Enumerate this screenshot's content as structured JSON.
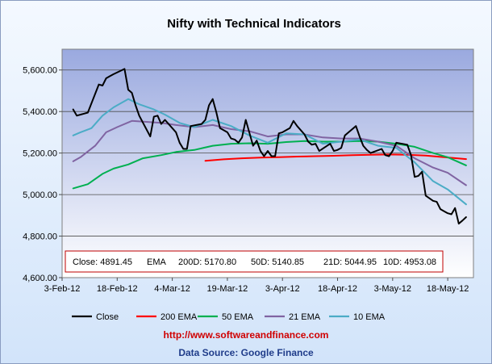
{
  "chart_data": {
    "type": "line",
    "title": "Nifty with Technical Indicators",
    "xlabel": "",
    "ylabel": "",
    "ylim": [
      4600,
      5700
    ],
    "yticks": [
      "4,600.00",
      "4,800.00",
      "5,000.00",
      "5,200.00",
      "5,400.00",
      "5,600.00"
    ],
    "ytick_values": [
      4600,
      4800,
      5000,
      5200,
      5400,
      5600
    ],
    "xlim": [
      "2012-02-03",
      "2012-05-25"
    ],
    "xticks": [
      "3-Feb-12",
      "18-Feb-12",
      "4-Mar-12",
      "19-Mar-12",
      "3-Apr-12",
      "18-Apr-12",
      "3-May-12",
      "18-May-12"
    ],
    "xtick_dates": [
      "2012-02-03",
      "2012-02-18",
      "2012-03-04",
      "2012-03-19",
      "2012-04-03",
      "2012-04-18",
      "2012-05-03",
      "2012-05-18"
    ],
    "grid": "horizontal",
    "legend_position": "bottom",
    "series": [
      {
        "name": "Close",
        "color": "#000000",
        "points": [
          [
            "2012-02-06",
            5410
          ],
          [
            "2012-02-07",
            5380
          ],
          [
            "2012-02-08",
            5385
          ],
          [
            "2012-02-09",
            5390
          ],
          [
            "2012-02-10",
            5395
          ],
          [
            "2012-02-13",
            5530
          ],
          [
            "2012-02-14",
            5525
          ],
          [
            "2012-02-15",
            5560
          ],
          [
            "2012-02-16",
            5570
          ],
          [
            "2012-02-17",
            5580
          ],
          [
            "2012-02-20",
            5605
          ],
          [
            "2012-02-21",
            5505
          ],
          [
            "2012-02-22",
            5490
          ],
          [
            "2012-02-23",
            5430
          ],
          [
            "2012-02-24",
            5380
          ],
          [
            "2012-02-27",
            5280
          ],
          [
            "2012-02-28",
            5375
          ],
          [
            "2012-02-29",
            5380
          ],
          [
            "2012-03-01",
            5340
          ],
          [
            "2012-03-02",
            5360
          ],
          [
            "2012-03-05",
            5300
          ],
          [
            "2012-03-06",
            5250
          ],
          [
            "2012-03-07",
            5220
          ],
          [
            "2012-03-08",
            5220
          ],
          [
            "2012-03-09",
            5330
          ],
          [
            "2012-03-12",
            5340
          ],
          [
            "2012-03-13",
            5360
          ],
          [
            "2012-03-14",
            5430
          ],
          [
            "2012-03-15",
            5460
          ],
          [
            "2012-03-16",
            5395
          ],
          [
            "2012-03-17",
            5320
          ],
          [
            "2012-03-19",
            5300
          ],
          [
            "2012-03-20",
            5270
          ],
          [
            "2012-03-21",
            5265
          ],
          [
            "2012-03-22",
            5250
          ],
          [
            "2012-03-23",
            5275
          ],
          [
            "2012-03-24",
            5360
          ],
          [
            "2012-03-26",
            5235
          ],
          [
            "2012-03-27",
            5260
          ],
          [
            "2012-03-28",
            5210
          ],
          [
            "2012-03-29",
            5185
          ],
          [
            "2012-03-30",
            5210
          ],
          [
            "2012-03-31",
            5185
          ],
          [
            "2012-04-01",
            5185
          ],
          [
            "2012-04-02",
            5295
          ],
          [
            "2012-04-03",
            5300
          ],
          [
            "2012-04-04",
            5310
          ],
          [
            "2012-04-05",
            5320
          ],
          [
            "2012-04-06",
            5355
          ],
          [
            "2012-04-07",
            5330
          ],
          [
            "2012-04-09",
            5290
          ],
          [
            "2012-04-10",
            5255
          ],
          [
            "2012-04-11",
            5240
          ],
          [
            "2012-04-12",
            5245
          ],
          [
            "2012-04-13",
            5210
          ],
          [
            "2012-04-16",
            5245
          ],
          [
            "2012-04-17",
            5210
          ],
          [
            "2012-04-18",
            5215
          ],
          [
            "2012-04-19",
            5225
          ],
          [
            "2012-04-20",
            5285
          ],
          [
            "2012-04-21",
            5300
          ],
          [
            "2012-04-23",
            5330
          ],
          [
            "2012-04-24",
            5280
          ],
          [
            "2012-04-25",
            5235
          ],
          [
            "2012-04-26",
            5215
          ],
          [
            "2012-04-27",
            5200
          ],
          [
            "2012-04-30",
            5220
          ],
          [
            "2012-05-01",
            5190
          ],
          [
            "2012-05-02",
            5185
          ],
          [
            "2012-05-03",
            5210
          ],
          [
            "2012-05-04",
            5250
          ],
          [
            "2012-05-07",
            5240
          ],
          [
            "2012-05-08",
            5190
          ],
          [
            "2012-05-09",
            5085
          ],
          [
            "2012-05-10",
            5090
          ],
          [
            "2012-05-11",
            5110
          ],
          [
            "2012-05-12",
            4995
          ],
          [
            "2012-05-14",
            4970
          ],
          [
            "2012-05-15",
            4965
          ],
          [
            "2012-05-16",
            4930
          ],
          [
            "2012-05-17",
            4920
          ],
          [
            "2012-05-18",
            4910
          ],
          [
            "2012-05-19",
            4905
          ],
          [
            "2012-05-20",
            4935
          ],
          [
            "2012-05-21",
            4860
          ],
          [
            "2012-05-22",
            4875
          ],
          [
            "2012-05-23",
            4891.45
          ]
        ]
      },
      {
        "name": "200 EMA",
        "color": "#ff0000",
        "points": [
          [
            "2012-03-13",
            5163
          ],
          [
            "2012-03-18",
            5170
          ],
          [
            "2012-03-23",
            5175
          ],
          [
            "2012-03-28",
            5178
          ],
          [
            "2012-04-02",
            5180
          ],
          [
            "2012-04-07",
            5183
          ],
          [
            "2012-04-12",
            5185
          ],
          [
            "2012-04-17",
            5187
          ],
          [
            "2012-04-22",
            5190
          ],
          [
            "2012-04-27",
            5192
          ],
          [
            "2012-05-02",
            5193
          ],
          [
            "2012-05-07",
            5192
          ],
          [
            "2012-05-12",
            5188
          ],
          [
            "2012-05-17",
            5180
          ],
          [
            "2012-05-23",
            5170.8
          ]
        ]
      },
      {
        "name": "50 EMA",
        "color": "#00b050",
        "points": [
          [
            "2012-02-06",
            5030
          ],
          [
            "2012-02-10",
            5050
          ],
          [
            "2012-02-14",
            5100
          ],
          [
            "2012-02-17",
            5125
          ],
          [
            "2012-02-21",
            5145
          ],
          [
            "2012-02-25",
            5175
          ],
          [
            "2012-03-01",
            5190
          ],
          [
            "2012-03-05",
            5205
          ],
          [
            "2012-03-10",
            5215
          ],
          [
            "2012-03-15",
            5235
          ],
          [
            "2012-03-20",
            5245
          ],
          [
            "2012-03-25",
            5247
          ],
          [
            "2012-03-30",
            5245
          ],
          [
            "2012-04-04",
            5253
          ],
          [
            "2012-04-09",
            5258
          ],
          [
            "2012-04-14",
            5255
          ],
          [
            "2012-04-19",
            5255
          ],
          [
            "2012-04-24",
            5258
          ],
          [
            "2012-04-29",
            5255
          ],
          [
            "2012-05-04",
            5245
          ],
          [
            "2012-05-09",
            5230
          ],
          [
            "2012-05-14",
            5200
          ],
          [
            "2012-05-18",
            5180
          ],
          [
            "2012-05-23",
            5140.85
          ]
        ]
      },
      {
        "name": "21 EMA",
        "color": "#8064a2",
        "points": [
          [
            "2012-02-06",
            5160
          ],
          [
            "2012-02-08",
            5180
          ],
          [
            "2012-02-12",
            5235
          ],
          [
            "2012-02-15",
            5300
          ],
          [
            "2012-02-18",
            5325
          ],
          [
            "2012-02-22",
            5355
          ],
          [
            "2012-02-26",
            5350
          ],
          [
            "2012-03-01",
            5345
          ],
          [
            "2012-03-05",
            5335
          ],
          [
            "2012-03-10",
            5325
          ],
          [
            "2012-03-15",
            5335
          ],
          [
            "2012-03-20",
            5315
          ],
          [
            "2012-03-25",
            5305
          ],
          [
            "2012-03-30",
            5280
          ],
          [
            "2012-04-04",
            5290
          ],
          [
            "2012-04-09",
            5290
          ],
          [
            "2012-04-14",
            5275
          ],
          [
            "2012-04-19",
            5270
          ],
          [
            "2012-04-24",
            5270
          ],
          [
            "2012-04-29",
            5255
          ],
          [
            "2012-05-04",
            5235
          ],
          [
            "2012-05-09",
            5175
          ],
          [
            "2012-05-14",
            5130
          ],
          [
            "2012-05-18",
            5105
          ],
          [
            "2012-05-23",
            5044.95
          ]
        ]
      },
      {
        "name": "10 EMA",
        "color": "#4bacc6",
        "points": [
          [
            "2012-02-06",
            5285
          ],
          [
            "2012-02-08",
            5300
          ],
          [
            "2012-02-11",
            5320
          ],
          [
            "2012-02-14",
            5380
          ],
          [
            "2012-02-17",
            5420
          ],
          [
            "2012-02-21",
            5460
          ],
          [
            "2012-02-24",
            5435
          ],
          [
            "2012-02-28",
            5410
          ],
          [
            "2012-03-02",
            5385
          ],
          [
            "2012-03-06",
            5345
          ],
          [
            "2012-03-10",
            5325
          ],
          [
            "2012-03-15",
            5360
          ],
          [
            "2012-03-20",
            5330
          ],
          [
            "2012-03-25",
            5285
          ],
          [
            "2012-03-30",
            5250
          ],
          [
            "2012-04-04",
            5295
          ],
          [
            "2012-04-09",
            5290
          ],
          [
            "2012-04-14",
            5245
          ],
          [
            "2012-04-19",
            5255
          ],
          [
            "2012-04-24",
            5265
          ],
          [
            "2012-04-29",
            5235
          ],
          [
            "2012-05-04",
            5225
          ],
          [
            "2012-05-09",
            5155
          ],
          [
            "2012-05-14",
            5065
          ],
          [
            "2012-05-18",
            5025
          ],
          [
            "2012-05-23",
            4953.08
          ]
        ]
      }
    ],
    "summary": {
      "close_label": "Close: 4891.45",
      "ema_label": "EMA",
      "ema200_label": "200D: 5170.80",
      "ema50_label": "50D: 5140.85",
      "ema21_label": "21D: 5044.95",
      "ema10_label": "10D: 4953.08"
    }
  },
  "footer": {
    "url": "http://www.softwareandfinance.com",
    "source": "Data Source: Google Finance"
  },
  "colors": {
    "plot_top": "#9aa9df",
    "plot_bottom": "#ffffff",
    "summary_border": "#c00000"
  }
}
